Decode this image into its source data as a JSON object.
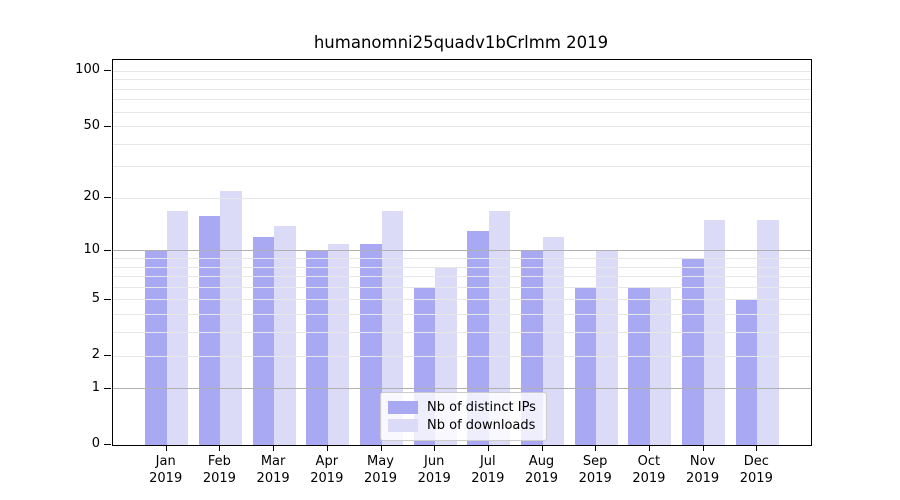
{
  "chart_data": {
    "type": "bar",
    "title": "humanomni25quadv1bCrlmm 2019",
    "categories": [
      "Jan",
      "Feb",
      "Mar",
      "Apr",
      "May",
      "Jun",
      "Jul",
      "Aug",
      "Sep",
      "Oct",
      "Nov",
      "Dec"
    ],
    "x_year": "2019",
    "series": [
      {
        "name": "Nb of distinct IPs",
        "color": "#a8a8f3",
        "values": [
          10,
          16,
          12,
          10,
          11,
          6,
          13,
          10,
          6,
          6,
          9,
          5
        ]
      },
      {
        "name": "Nb of downloads",
        "color": "#dbdbf8",
        "values": [
          17,
          22,
          14,
          11,
          17,
          8,
          17,
          12,
          10,
          6,
          15,
          15
        ]
      }
    ],
    "y_scale": "log1p",
    "y_max": 115,
    "y_ticks": [
      0,
      1,
      2,
      5,
      10,
      20,
      50,
      100
    ],
    "major_gridlines": [
      1,
      10
    ],
    "minor_gridlines": [
      2,
      3,
      4,
      5,
      6,
      7,
      8,
      9,
      20,
      30,
      40,
      50,
      60,
      70,
      80,
      90,
      100
    ],
    "grid": "horizontal",
    "legend_position": "lower center",
    "colors": {
      "major_grid": "#b0b0b0",
      "minor_grid": "#e7e7e7",
      "axis": "#000000",
      "background": "#ffffff"
    }
  }
}
